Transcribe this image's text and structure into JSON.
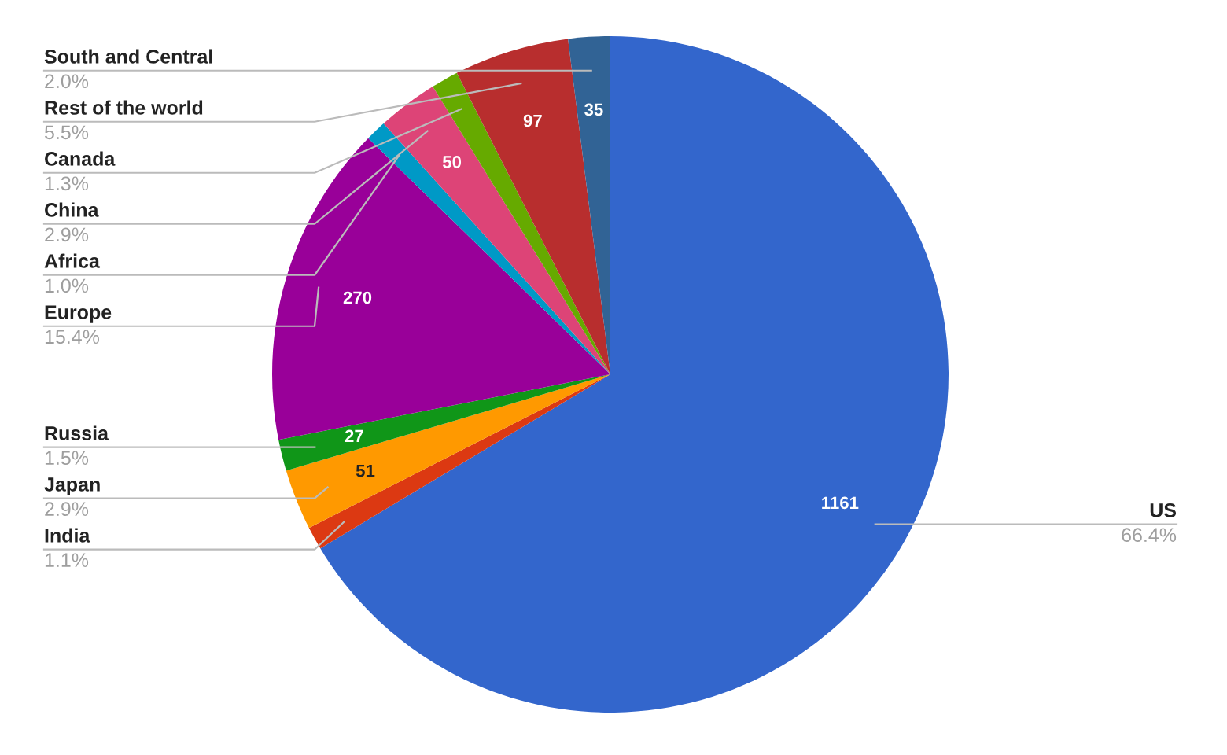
{
  "chart_data": {
    "type": "pie",
    "categories": [
      "US",
      "India",
      "Japan",
      "Russia",
      "Europe",
      "Africa",
      "China",
      "Canada",
      "Rest of the world",
      "South and Central"
    ],
    "values": [
      66.4,
      1.1,
      2.9,
      1.5,
      15.4,
      1.0,
      2.9,
      1.3,
      5.5,
      2.0
    ],
    "colors": [
      "#3366cc",
      "#dc3912",
      "#ff9900",
      "#109618",
      "#990099",
      "#0099c6",
      "#dd4477",
      "#66aa00",
      "#b82e2e",
      "#316395"
    ],
    "value_labels": [
      "66.4%",
      "1.1%",
      "2.9%",
      "1.5%",
      "15.4%",
      "1.0%",
      "2.9%",
      "1.3%",
      "5.5%",
      "2.0%"
    ],
    "annotations": [
      {
        "text": "1161",
        "x": "US"
      },
      {
        "text": "51",
        "x": "Japan"
      },
      {
        "text": "27",
        "x": "Russia"
      },
      {
        "text": "270",
        "x": "Europe"
      },
      {
        "text": "50",
        "x": "China"
      },
      {
        "text": "97",
        "x": "Rest of the world"
      },
      {
        "text": "35",
        "x": "South and Central"
      }
    ]
  }
}
